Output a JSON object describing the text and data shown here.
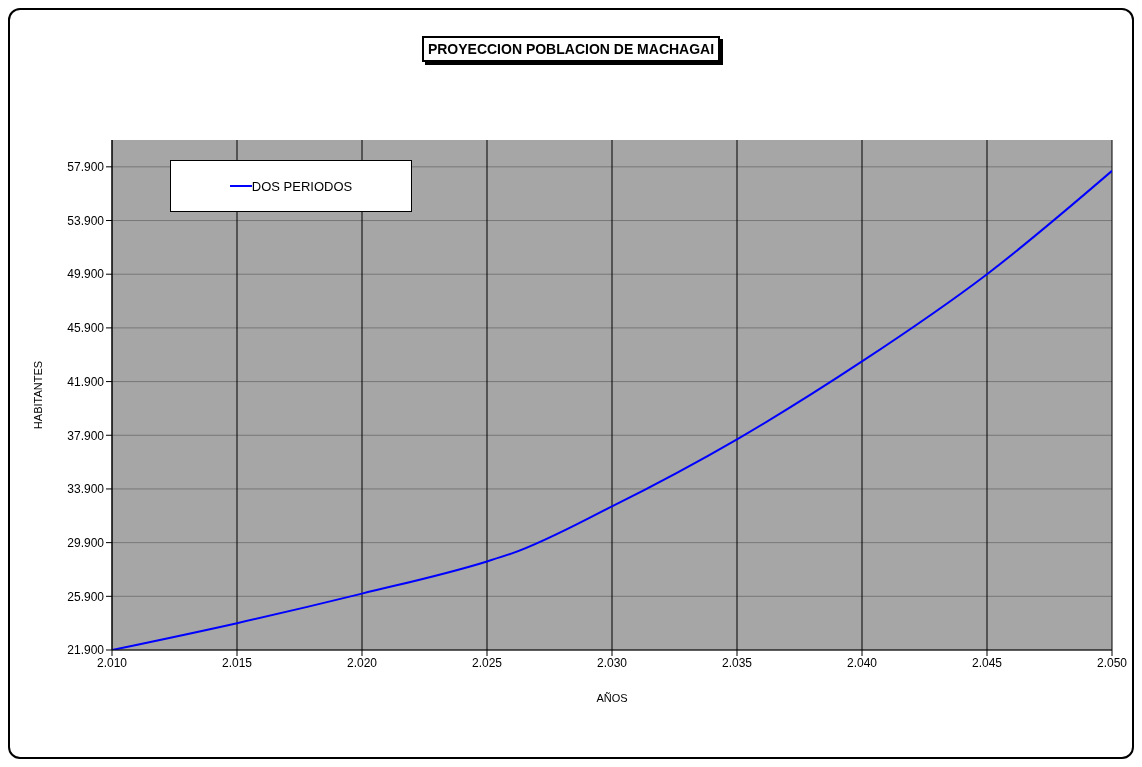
{
  "chart_data": {
    "type": "line",
    "title": "PROYECCION POBLACION DE MACHAGAI",
    "xlabel": "AÑOS",
    "ylabel": "HABITANTES",
    "x": [
      2010,
      2015,
      2020,
      2025,
      2026,
      2030,
      2035,
      2040,
      2045,
      2050
    ],
    "series": [
      {
        "name": "DOS PERIODOS",
        "color": "#0000ff",
        "values": [
          21900,
          23900,
          26100,
          28500,
          29100,
          32600,
          37600,
          43400,
          49900,
          57600
        ]
      }
    ],
    "xlim": [
      2010,
      2050
    ],
    "xticks": [
      {
        "value": 2010,
        "label": "2.010"
      },
      {
        "value": 2015,
        "label": "2.015"
      },
      {
        "value": 2020,
        "label": "2.020"
      },
      {
        "value": 2025,
        "label": "2.025"
      },
      {
        "value": 2030,
        "label": "2.030"
      },
      {
        "value": 2035,
        "label": "2.035"
      },
      {
        "value": 2040,
        "label": "2.040"
      },
      {
        "value": 2045,
        "label": "2.045"
      },
      {
        "value": 2050,
        "label": "2.050"
      }
    ],
    "ylim": [
      21900,
      59900
    ],
    "yticks": [
      {
        "value": 21900,
        "label": "21.900"
      },
      {
        "value": 25900,
        "label": "25.900"
      },
      {
        "value": 29900,
        "label": "29.900"
      },
      {
        "value": 33900,
        "label": "33.900"
      },
      {
        "value": 37900,
        "label": "37.900"
      },
      {
        "value": 41900,
        "label": "41.900"
      },
      {
        "value": 45900,
        "label": "45.900"
      },
      {
        "value": 49900,
        "label": "49.900"
      },
      {
        "value": 53900,
        "label": "53.900"
      },
      {
        "value": 57900,
        "label": "57.900"
      }
    ],
    "grid": true,
    "legend": "top left",
    "marker": "none",
    "line_style": "solid"
  }
}
